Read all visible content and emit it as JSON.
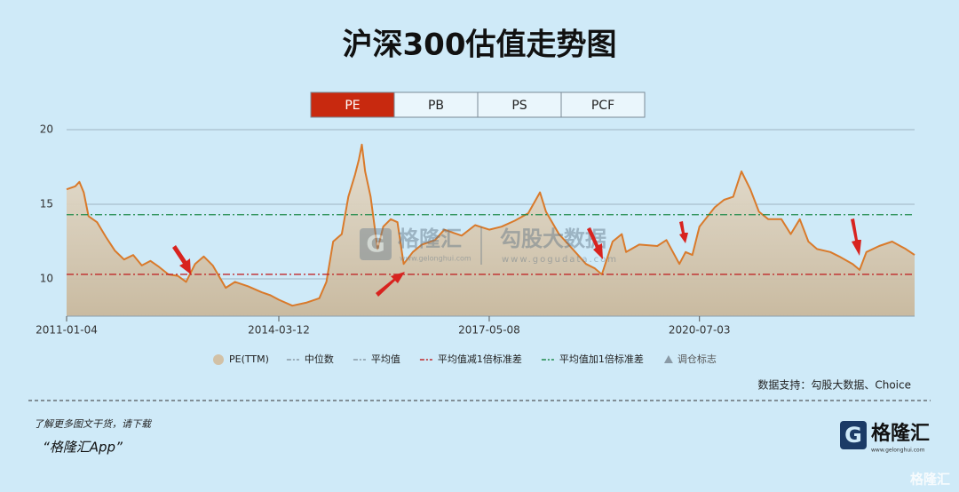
{
  "chart_data": {
    "type": "line",
    "title": "沪深300估值走势图",
    "tabs": [
      "PE",
      "PB",
      "PS",
      "PCF"
    ],
    "active_tab": 0,
    "x": [
      "2011-01-04",
      "2011-02-20",
      "2011-03-15",
      "2011-04-08",
      "2011-05-04",
      "2011-06-20",
      "2011-08-08",
      "2011-09-25",
      "2011-11-15",
      "2012-01-04",
      "2012-02-20",
      "2012-04-08",
      "2012-05-25",
      "2012-07-15",
      "2012-09-04",
      "2012-10-20",
      "2012-12-08",
      "2013-01-25",
      "2013-03-15",
      "2013-05-25",
      "2013-07-15",
      "2013-09-25",
      "2013-12-08",
      "2014-01-25",
      "2014-03-12",
      "2014-05-25",
      "2014-08-08",
      "2014-10-20",
      "2014-11-28",
      "2015-01-04",
      "2015-02-20",
      "2015-03-28",
      "2015-05-04",
      "2015-05-25",
      "2015-06-10",
      "2015-06-28",
      "2015-07-28",
      "2015-09-04",
      "2015-10-05",
      "2015-11-15",
      "2015-12-22",
      "2016-01-25",
      "2016-03-15",
      "2016-05-04",
      "2016-07-15",
      "2016-09-04",
      "2016-10-20",
      "2016-12-08",
      "2017-02-20",
      "2017-05-08",
      "2017-07-15",
      "2017-09-25",
      "2017-12-08",
      "2018-02-10",
      "2018-03-15",
      "2018-05-25",
      "2018-08-08",
      "2018-10-20",
      "2018-12-08",
      "2019-01-15",
      "2019-03-15",
      "2019-05-04",
      "2019-05-28",
      "2019-08-08",
      "2019-11-15",
      "2020-01-04",
      "2020-03-15",
      "2020-04-18",
      "2020-05-25",
      "2020-07-03",
      "2020-09-25",
      "2020-11-15",
      "2021-01-04",
      "2021-02-18",
      "2021-04-08",
      "2021-05-25",
      "2021-07-15",
      "2021-09-25",
      "2021-11-15",
      "2022-01-04",
      "2022-02-20",
      "2022-04-08",
      "2022-06-20",
      "2022-08-08",
      "2022-10-20",
      "2022-11-28",
      "2023-01-04",
      "2023-03-15",
      "2023-05-25",
      "2023-08-08",
      "2023-09-25"
    ],
    "series": [
      {
        "name": "PE(TTM)",
        "color": "#d97a2b",
        "fill": "#d2c1a6",
        "values": [
          16.0,
          16.2,
          16.5,
          15.8,
          14.2,
          13.8,
          12.8,
          11.9,
          11.3,
          11.6,
          10.9,
          11.2,
          10.8,
          10.3,
          10.2,
          9.8,
          11.0,
          11.5,
          10.9,
          9.4,
          9.8,
          9.5,
          9.1,
          8.9,
          8.6,
          8.2,
          8.4,
          8.7,
          9.8,
          12.5,
          13.0,
          15.5,
          17.0,
          18.0,
          19.0,
          17.2,
          15.5,
          12.0,
          13.5,
          14.0,
          13.8,
          11.0,
          11.8,
          12.3,
          12.6,
          13.3,
          13.1,
          12.9,
          13.6,
          13.3,
          13.5,
          13.9,
          14.4,
          15.8,
          14.5,
          13.0,
          12.0,
          11.0,
          10.7,
          10.3,
          12.5,
          13.0,
          11.8,
          12.3,
          12.2,
          12.6,
          11.0,
          11.8,
          11.6,
          13.5,
          14.8,
          15.3,
          15.5,
          17.2,
          16.0,
          14.5,
          14.0,
          14.0,
          13.0,
          14.0,
          12.5,
          12.0,
          11.8,
          11.5,
          11.0,
          10.6,
          11.8,
          12.2,
          12.5,
          12.0,
          11.6
        ]
      }
    ],
    "reference_lines": [
      {
        "name": "中位数",
        "color": "#8a9aa6",
        "value": null
      },
      {
        "name": "平均值",
        "color": "#8a9aa6",
        "value": null
      },
      {
        "name": "平均值减1倍标准差",
        "color": "#c0282a",
        "value": 10.3
      },
      {
        "name": "平均值加1倍标准差",
        "color": "#1e8a4a",
        "value": 14.3
      }
    ],
    "marker_legend": "调仓标志",
    "xlim": [
      "2011-01-04",
      "2023-09-25"
    ],
    "xticks": [
      "2011-01-04",
      "2014-03-12",
      "2017-05-08",
      "2020-07-03"
    ],
    "ylim": [
      7.5,
      20
    ],
    "yticks": [
      10,
      15,
      20
    ],
    "grid": true,
    "source": "数据支持：勾股大数据、Choice",
    "watermarks": [
      {
        "name": "格隆汇",
        "url": "www.gelonghui.com"
      },
      {
        "name": "勾股大数据",
        "url": "www.gogudata.com"
      }
    ]
  },
  "footer": {
    "line1": "了解更多图文干货，请下载",
    "line2": "“格隆汇App”",
    "logo": "格隆汇",
    "logo_url": "www.gelonghui.com",
    "corner": "格隆汇"
  }
}
